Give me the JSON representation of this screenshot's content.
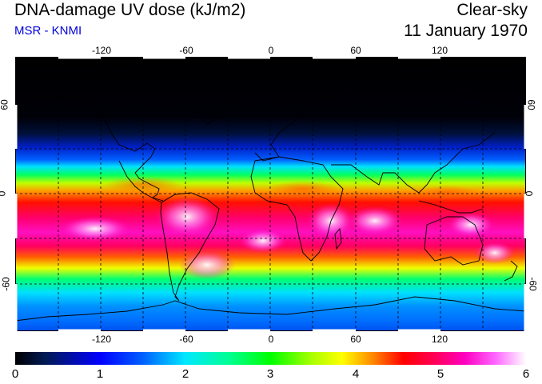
{
  "header": {
    "title": "DNA-damage UV dose (kJ/m2)",
    "credit": "MSR - KNMI",
    "sky_condition": "Clear-sky",
    "date": "11 January 1970"
  },
  "map": {
    "projection": "equirectangular",
    "lon_ticks": [
      "-120",
      "-60",
      "0",
      "60",
      "120"
    ],
    "lat_ticks": [
      "60",
      "0",
      "-60"
    ],
    "lat_ticks_right": [
      "60",
      "0",
      "-60"
    ],
    "grid_style": "dashed black lines every 30 degrees"
  },
  "colorbar": {
    "labels": [
      "0",
      "1",
      "2",
      "3",
      "4",
      "5",
      "6"
    ],
    "min": 0,
    "max": 6,
    "unit": "kJ/m2"
  },
  "colors": {
    "credit_text": "#0000dd",
    "polar_night": "#000000",
    "max_dose": "#ffffff"
  }
}
